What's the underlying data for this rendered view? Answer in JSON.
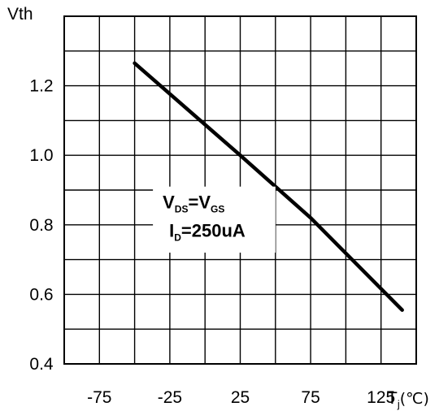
{
  "chart_data": {
    "type": "line",
    "ylabel": "Vth",
    "xlabel": {
      "main": "T",
      "subscript": "j",
      "unit": "(℃)"
    },
    "xlim": [
      -100,
      150
    ],
    "ylim": [
      0.4,
      1.4
    ],
    "x_ticks": [
      -75,
      -25,
      25,
      75,
      125
    ],
    "x_tick_labels": [
      "-75",
      "-25",
      "25",
      "75",
      "125"
    ],
    "y_ticks": [
      0.6,
      0.8,
      1.0,
      1.2,
      0.4
    ],
    "y_tick_labels": [
      "0.6",
      "0.8",
      "1.0",
      "1.2",
      "0.4"
    ],
    "grid": true,
    "series": [
      {
        "x": [
          -50,
          25,
          75,
          140
        ],
        "y": [
          1.265,
          1.0,
          0.82,
          0.555
        ],
        "color": "#000000"
      }
    ],
    "annotations": [
      {
        "parts": [
          {
            "text": "V",
            "sub": false
          },
          {
            "text": "DS",
            "sub": true
          },
          {
            "text": "=V",
            "sub": false
          },
          {
            "text": "GS",
            "sub": true
          }
        ]
      },
      {
        "parts": [
          {
            "text": "I",
            "sub": false
          },
          {
            "text": "D",
            "sub": true
          },
          {
            "text": "=250uA",
            "sub": false
          }
        ]
      }
    ],
    "annotation_box": {
      "x_range": [
        -37,
        50
      ],
      "y_range": [
        0.72,
        0.91
      ]
    }
  }
}
